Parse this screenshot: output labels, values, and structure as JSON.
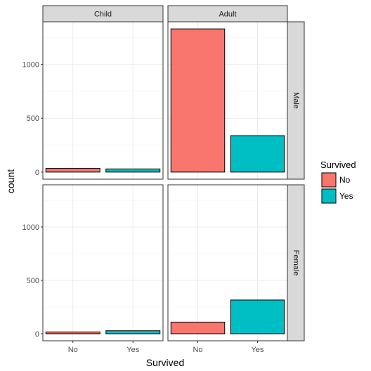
{
  "chart_data": {
    "type": "bar",
    "facet_cols": [
      "Child",
      "Adult"
    ],
    "facet_rows": [
      "Male",
      "Female"
    ],
    "categories": [
      "No",
      "Yes"
    ],
    "xlabel": "Survived",
    "ylabel": "count",
    "ylim": [
      0,
      1400
    ],
    "yticks": [
      0,
      500,
      1000
    ],
    "grid": true,
    "legend": {
      "title": "Survived",
      "position": "right",
      "entries": [
        {
          "label": "No",
          "color": "#F8766D"
        },
        {
          "label": "Yes",
          "color": "#00BFC4"
        }
      ]
    },
    "panels": [
      {
        "row": "Male",
        "col": "Child",
        "values": {
          "No": 35,
          "Yes": 29
        }
      },
      {
        "row": "Male",
        "col": "Adult",
        "values": {
          "No": 1329,
          "Yes": 338
        }
      },
      {
        "row": "Female",
        "col": "Child",
        "values": {
          "No": 17,
          "Yes": 28
        }
      },
      {
        "row": "Female",
        "col": "Adult",
        "values": {
          "No": 109,
          "Yes": 316
        }
      }
    ]
  }
}
